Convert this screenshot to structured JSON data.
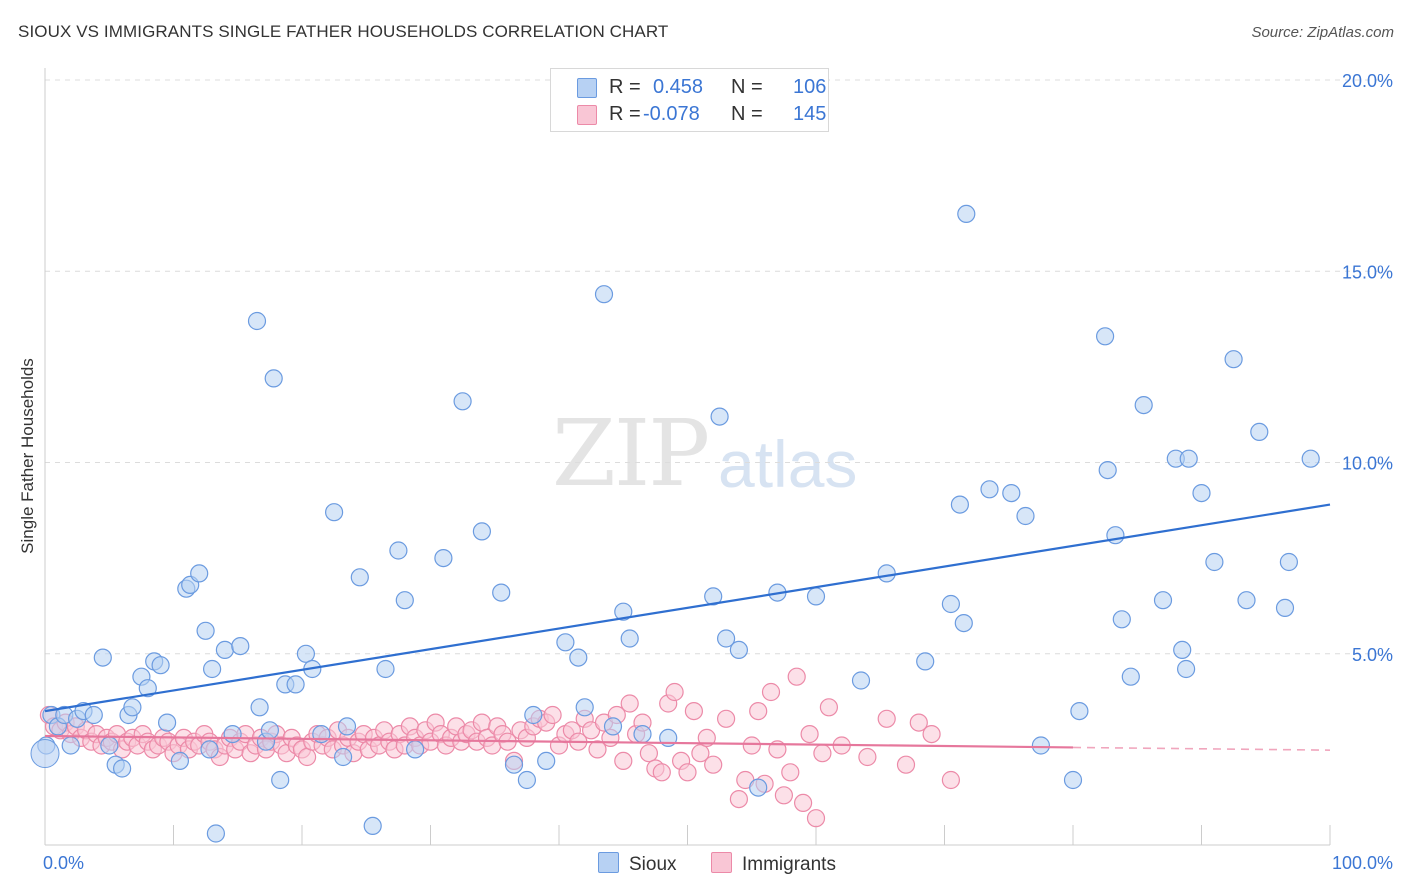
{
  "header": {
    "title": "SIOUX VS IMMIGRANTS SINGLE FATHER HOUSEHOLDS CORRELATION CHART",
    "source": "Source: ZipAtlas.com"
  },
  "watermark": {
    "zip": "ZIP",
    "atlas": "atlas"
  },
  "legend": {
    "rows": [
      {
        "r_label": "R =",
        "r_value": "0.458",
        "n_label": "N =",
        "n_value": "106",
        "color": "#a9c8f0"
      },
      {
        "r_label": "R =",
        "r_value": "-0.078",
        "n_label": "N =",
        "n_value": "145",
        "color": "#f7b9cc"
      }
    ],
    "bottom": [
      "Sioux",
      "Immigrants"
    ]
  },
  "chart_data": {
    "type": "scatter",
    "title": "SIOUX VS IMMIGRANTS SINGLE FATHER HOUSEHOLDS CORRELATION CHART",
    "xlabel": "",
    "ylabel": "Single Father Households",
    "xlim": [
      0,
      100
    ],
    "ylim": [
      0,
      20
    ],
    "x_ticks": [
      "0.0%",
      "100.0%"
    ],
    "y_ticks": [
      {
        "value": 5,
        "label": "5.0%"
      },
      {
        "value": 10,
        "label": "10.0%"
      },
      {
        "value": 15,
        "label": "15.0%"
      },
      {
        "value": 20,
        "label": "20.0%"
      }
    ],
    "grid": true,
    "series": [
      {
        "name": "Sioux",
        "color": "#6b9be0",
        "fill": "#b7d1f3",
        "trend": {
          "x": [
            0,
            100
          ],
          "y": [
            3.5,
            8.9
          ]
        },
        "points": [
          [
            0.1,
            2.6
          ],
          [
            0.5,
            3.4
          ],
          [
            1.0,
            3.1
          ],
          [
            1.5,
            3.4
          ],
          [
            2.0,
            2.6
          ],
          [
            2.5,
            3.3
          ],
          [
            3.0,
            3.5
          ],
          [
            3.8,
            3.4
          ],
          [
            4.5,
            4.9
          ],
          [
            5.0,
            2.6
          ],
          [
            5.5,
            2.1
          ],
          [
            6.0,
            2.0
          ],
          [
            6.5,
            3.4
          ],
          [
            6.8,
            3.6
          ],
          [
            7.5,
            4.4
          ],
          [
            8.0,
            4.1
          ],
          [
            8.5,
            4.8
          ],
          [
            9.0,
            4.7
          ],
          [
            9.5,
            3.2
          ],
          [
            10.5,
            2.2
          ],
          [
            11.0,
            6.7
          ],
          [
            11.3,
            6.8
          ],
          [
            12.0,
            7.1
          ],
          [
            12.5,
            5.6
          ],
          [
            12.8,
            2.5
          ],
          [
            13.0,
            4.6
          ],
          [
            13.3,
            0.3
          ],
          [
            14.0,
            5.1
          ],
          [
            14.6,
            2.9
          ],
          [
            15.2,
            5.2
          ],
          [
            16.5,
            13.7
          ],
          [
            16.7,
            3.6
          ],
          [
            17.2,
            2.7
          ],
          [
            17.5,
            3.0
          ],
          [
            17.8,
            12.2
          ],
          [
            18.3,
            1.7
          ],
          [
            18.7,
            4.2
          ],
          [
            19.5,
            4.2
          ],
          [
            20.3,
            5.0
          ],
          [
            20.8,
            4.6
          ],
          [
            21.5,
            2.9
          ],
          [
            22.5,
            8.7
          ],
          [
            23.2,
            2.3
          ],
          [
            23.5,
            3.1
          ],
          [
            24.5,
            7.0
          ],
          [
            25.5,
            0.5
          ],
          [
            26.5,
            4.6
          ],
          [
            27.5,
            7.7
          ],
          [
            28.0,
            6.4
          ],
          [
            28.8,
            2.5
          ],
          [
            31.0,
            7.5
          ],
          [
            32.5,
            11.6
          ],
          [
            34.0,
            8.2
          ],
          [
            35.5,
            6.6
          ],
          [
            36.5,
            2.1
          ],
          [
            37.5,
            1.7
          ],
          [
            38.0,
            3.4
          ],
          [
            39.0,
            2.2
          ],
          [
            40.5,
            5.3
          ],
          [
            41.5,
            4.9
          ],
          [
            42.0,
            3.6
          ],
          [
            43.5,
            14.4
          ],
          [
            44.2,
            3.1
          ],
          [
            45.0,
            6.1
          ],
          [
            45.5,
            5.4
          ],
          [
            46.5,
            2.9
          ],
          [
            48.5,
            2.8
          ],
          [
            52.0,
            6.5
          ],
          [
            52.5,
            11.2
          ],
          [
            53.0,
            5.4
          ],
          [
            54.0,
            5.1
          ],
          [
            55.5,
            1.5
          ],
          [
            57.0,
            6.6
          ],
          [
            60.0,
            6.5
          ],
          [
            63.5,
            4.3
          ],
          [
            65.5,
            7.1
          ],
          [
            68.5,
            4.8
          ],
          [
            70.5,
            6.3
          ],
          [
            71.2,
            8.9
          ],
          [
            71.5,
            5.8
          ],
          [
            71.7,
            16.5
          ],
          [
            73.5,
            9.3
          ],
          [
            75.2,
            9.2
          ],
          [
            76.3,
            8.6
          ],
          [
            77.5,
            2.6
          ],
          [
            80.0,
            1.7
          ],
          [
            80.5,
            3.5
          ],
          [
            82.5,
            13.3
          ],
          [
            82.7,
            9.8
          ],
          [
            83.3,
            8.1
          ],
          [
            83.8,
            5.9
          ],
          [
            84.5,
            4.4
          ],
          [
            85.5,
            11.5
          ],
          [
            87.0,
            6.4
          ],
          [
            88.0,
            10.1
          ],
          [
            88.5,
            5.1
          ],
          [
            88.8,
            4.6
          ],
          [
            89.0,
            10.1
          ],
          [
            90.0,
            9.2
          ],
          [
            91.0,
            7.4
          ],
          [
            92.5,
            12.7
          ],
          [
            93.5,
            6.4
          ],
          [
            94.5,
            10.8
          ],
          [
            96.5,
            6.2
          ],
          [
            96.8,
            7.4
          ],
          [
            98.5,
            10.1
          ]
        ]
      },
      {
        "name": "Immigrants",
        "color": "#ec8aa8",
        "fill": "#f9c6d5",
        "trend": {
          "x": [
            0,
            80
          ],
          "y": [
            2.85,
            2.55
          ]
        },
        "trend_dashed": {
          "x": [
            80,
            100
          ],
          "y": [
            2.55,
            2.48
          ]
        },
        "points": [
          [
            0.3,
            3.4
          ],
          [
            0.7,
            3.1
          ],
          [
            1.2,
            3.0
          ],
          [
            1.6,
            3.2
          ],
          [
            2.0,
            2.9
          ],
          [
            2.4,
            3.1
          ],
          [
            2.8,
            2.8
          ],
          [
            3.2,
            3.0
          ],
          [
            3.6,
            2.7
          ],
          [
            4.0,
            2.9
          ],
          [
            4.4,
            2.6
          ],
          [
            4.8,
            2.8
          ],
          [
            5.2,
            2.7
          ],
          [
            5.6,
            2.9
          ],
          [
            6.0,
            2.5
          ],
          [
            6.4,
            2.7
          ],
          [
            6.8,
            2.8
          ],
          [
            7.2,
            2.6
          ],
          [
            7.6,
            2.9
          ],
          [
            8.0,
            2.7
          ],
          [
            8.4,
            2.5
          ],
          [
            8.8,
            2.6
          ],
          [
            9.2,
            2.8
          ],
          [
            9.6,
            2.7
          ],
          [
            10.0,
            2.4
          ],
          [
            10.4,
            2.6
          ],
          [
            10.8,
            2.8
          ],
          [
            11.2,
            2.5
          ],
          [
            11.6,
            2.7
          ],
          [
            12.0,
            2.6
          ],
          [
            12.4,
            2.9
          ],
          [
            12.8,
            2.7
          ],
          [
            13.2,
            2.5
          ],
          [
            13.6,
            2.3
          ],
          [
            14.0,
            2.6
          ],
          [
            14.4,
            2.8
          ],
          [
            14.8,
            2.5
          ],
          [
            15.2,
            2.7
          ],
          [
            15.6,
            2.9
          ],
          [
            16.0,
            2.4
          ],
          [
            16.4,
            2.6
          ],
          [
            16.8,
            2.8
          ],
          [
            17.2,
            2.5
          ],
          [
            17.6,
            2.7
          ],
          [
            18.0,
            2.9
          ],
          [
            18.4,
            2.6
          ],
          [
            18.8,
            2.4
          ],
          [
            19.2,
            2.8
          ],
          [
            19.6,
            2.6
          ],
          [
            20.0,
            2.5
          ],
          [
            20.4,
            2.3
          ],
          [
            20.8,
            2.7
          ],
          [
            21.2,
            2.9
          ],
          [
            21.6,
            2.6
          ],
          [
            22.0,
            2.8
          ],
          [
            22.4,
            2.5
          ],
          [
            22.8,
            3.0
          ],
          [
            23.2,
            2.6
          ],
          [
            23.6,
            2.8
          ],
          [
            24.0,
            2.4
          ],
          [
            24.4,
            2.7
          ],
          [
            24.8,
            2.9
          ],
          [
            25.2,
            2.5
          ],
          [
            25.6,
            2.8
          ],
          [
            26.0,
            2.6
          ],
          [
            26.4,
            3.0
          ],
          [
            26.8,
            2.7
          ],
          [
            27.2,
            2.5
          ],
          [
            27.6,
            2.9
          ],
          [
            28.0,
            2.6
          ],
          [
            28.4,
            3.1
          ],
          [
            28.8,
            2.8
          ],
          [
            29.2,
            2.6
          ],
          [
            29.6,
            3.0
          ],
          [
            30.0,
            2.7
          ],
          [
            30.4,
            3.2
          ],
          [
            30.8,
            2.9
          ],
          [
            31.2,
            2.6
          ],
          [
            31.6,
            2.8
          ],
          [
            32.0,
            3.1
          ],
          [
            32.4,
            2.7
          ],
          [
            32.8,
            2.9
          ],
          [
            33.2,
            3.0
          ],
          [
            33.6,
            2.7
          ],
          [
            34.0,
            3.2
          ],
          [
            34.4,
            2.8
          ],
          [
            34.8,
            2.6
          ],
          [
            35.2,
            3.1
          ],
          [
            35.6,
            2.9
          ],
          [
            36.0,
            2.7
          ],
          [
            36.5,
            2.2
          ],
          [
            37.0,
            3.0
          ],
          [
            37.5,
            2.8
          ],
          [
            38.0,
            3.1
          ],
          [
            38.5,
            3.3
          ],
          [
            39.0,
            3.2
          ],
          [
            39.5,
            3.4
          ],
          [
            40.0,
            2.6
          ],
          [
            40.5,
            2.9
          ],
          [
            41.0,
            3.0
          ],
          [
            41.5,
            2.7
          ],
          [
            42.0,
            3.3
          ],
          [
            42.5,
            3.0
          ],
          [
            43.0,
            2.5
          ],
          [
            43.5,
            3.2
          ],
          [
            44.0,
            2.8
          ],
          [
            44.5,
            3.4
          ],
          [
            45.0,
            2.2
          ],
          [
            45.5,
            3.7
          ],
          [
            46.0,
            2.9
          ],
          [
            46.5,
            3.2
          ],
          [
            47.0,
            2.4
          ],
          [
            47.5,
            2.0
          ],
          [
            48.0,
            1.9
          ],
          [
            48.5,
            3.7
          ],
          [
            49.0,
            4.0
          ],
          [
            49.5,
            2.2
          ],
          [
            50.0,
            1.9
          ],
          [
            50.5,
            3.5
          ],
          [
            51.0,
            2.4
          ],
          [
            51.5,
            2.8
          ],
          [
            52.0,
            2.1
          ],
          [
            53.0,
            3.3
          ],
          [
            54.0,
            1.2
          ],
          [
            54.5,
            1.7
          ],
          [
            55.0,
            2.6
          ],
          [
            55.5,
            3.5
          ],
          [
            56.0,
            1.6
          ],
          [
            56.5,
            4.0
          ],
          [
            57.0,
            2.5
          ],
          [
            57.5,
            1.3
          ],
          [
            58.0,
            1.9
          ],
          [
            58.5,
            4.4
          ],
          [
            59.0,
            1.1
          ],
          [
            59.5,
            2.9
          ],
          [
            60.0,
            0.7
          ],
          [
            60.5,
            2.4
          ],
          [
            61.0,
            3.6
          ],
          [
            62.0,
            2.6
          ],
          [
            64.0,
            2.3
          ],
          [
            65.5,
            3.3
          ],
          [
            67.0,
            2.1
          ],
          [
            68.0,
            3.2
          ],
          [
            69.0,
            2.9
          ],
          [
            70.5,
            1.7
          ]
        ]
      }
    ]
  }
}
